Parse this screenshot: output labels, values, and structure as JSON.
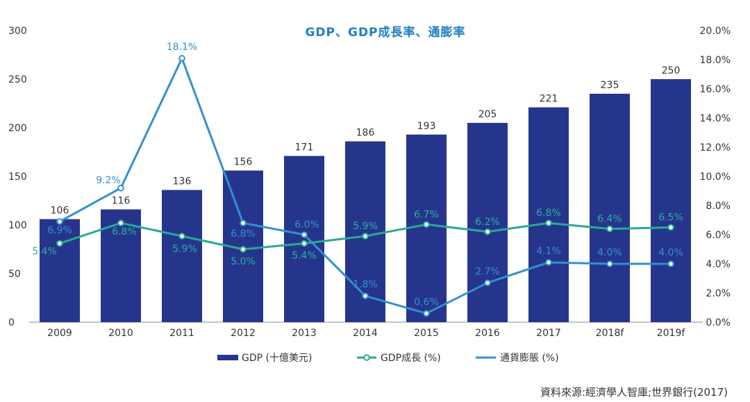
{
  "chart_data": {
    "type": "bar",
    "title": "GDP、GDP成長率、通膨率",
    "categories": [
      "2009",
      "2010",
      "2011",
      "2012",
      "2013",
      "2014",
      "2015",
      "2016",
      "2017",
      "2018f",
      "2019f"
    ],
    "series": [
      {
        "name": "GDP (十億美元)",
        "type": "bar",
        "axis": "left",
        "color": "#26358c",
        "values": [
          106,
          116,
          136,
          156,
          171,
          186,
          193,
          205,
          221,
          235,
          250
        ],
        "labels": [
          "106",
          "116",
          "136",
          "156",
          "171",
          "186",
          "193",
          "205",
          "221",
          "235",
          "250"
        ]
      },
      {
        "name": "GDP成長 (%)",
        "type": "line",
        "axis": "right",
        "color": "#2aa897",
        "values": [
          5.4,
          6.8,
          5.9,
          5.0,
          5.4,
          5.9,
          6.7,
          6.2,
          6.8,
          6.4,
          6.5
        ],
        "labels": [
          "5.4%",
          "6.8%",
          "5.9%",
          "5.0%",
          "5.4%",
          "5.9%",
          "6.7%",
          "6.2%",
          "6.8%",
          "6.4%",
          "6.5%"
        ]
      },
      {
        "name": "通貨膨脹 (%)",
        "type": "line",
        "axis": "right",
        "color": "#3190d0",
        "values": [
          6.9,
          9.2,
          18.1,
          6.8,
          6.0,
          1.8,
          0.6,
          2.7,
          4.1,
          4.0,
          4.0
        ],
        "labels": [
          "6.9%",
          "9.2%",
          "18.1%",
          "6.8%",
          "6.0%",
          "1.8%",
          "0.6%",
          "2.7%",
          "4.1%",
          "4.0%",
          "4.0%"
        ]
      }
    ],
    "y_left": {
      "range": [
        0,
        300
      ],
      "ticks": [
        "0",
        "50",
        "100",
        "150",
        "200",
        "250",
        "300"
      ]
    },
    "y_right": {
      "range": [
        0,
        20
      ],
      "ticks": [
        "0.0%",
        "2.0%",
        "4.0%",
        "6.0%",
        "8.0%",
        "10.0%",
        "12.0%",
        "14.0%",
        "16.0%",
        "18.0%",
        "20.0%"
      ]
    },
    "grid": false,
    "legend_position": "bottom"
  },
  "source": "資料來源:經濟學人智庫;世界銀行(2017)"
}
